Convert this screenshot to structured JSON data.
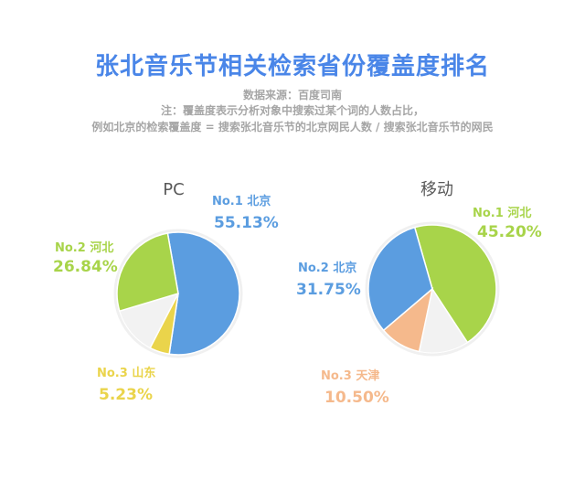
{
  "header": {
    "title": "张北音乐节相关检索省份覆盖度排名",
    "source": "数据来源：百度司南",
    "note": "注：覆盖度表示分析对象中搜索过某个词的人数占比，",
    "example": "例如北京的检索覆盖度 = 搜索张北音乐节的北京网民人数 / 搜索张北音乐节的网民"
  },
  "colors": {
    "title": "#4a86e8",
    "subtitle": "#a6a6a6",
    "blue": "#5b9de0",
    "green": "#a8d44a",
    "yellow": "#ead44b",
    "peach": "#f5b98c",
    "rest": "#f2f2f2"
  },
  "chart_data": [
    {
      "type": "pie",
      "title": "PC",
      "slices": [
        {
          "label": "No.1 北京",
          "value": 55.13,
          "display": "55.13%",
          "color": "#5b9de0"
        },
        {
          "label": "No.2 河北",
          "value": 26.84,
          "display": "26.84%",
          "color": "#a8d44a"
        },
        {
          "label": "No.3 山东",
          "value": 5.23,
          "display": "5.23%",
          "color": "#ead44b"
        }
      ]
    },
    {
      "type": "pie",
      "title": "移动",
      "slices": [
        {
          "label": "No.1 河北",
          "value": 45.2,
          "display": "45.20%",
          "color": "#a8d44a"
        },
        {
          "label": "No.2 北京",
          "value": 31.75,
          "display": "31.75%",
          "color": "#5b9de0"
        },
        {
          "label": "No.3 天津",
          "value": 10.5,
          "display": "10.50%",
          "color": "#f5b98c"
        }
      ]
    }
  ]
}
